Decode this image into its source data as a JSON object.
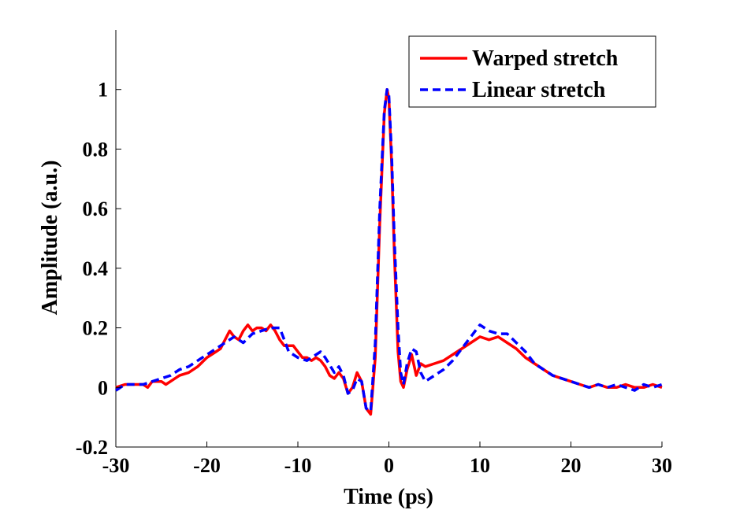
{
  "chart_data": {
    "type": "line",
    "title": "",
    "xlabel": "Time (ps)",
    "ylabel": "Amplitude (a.u.)",
    "xlim": [
      -30,
      30
    ],
    "ylim": [
      -0.2,
      1.2
    ],
    "xticks": [
      -30,
      -20,
      -10,
      0,
      10,
      20,
      30
    ],
    "xtick_labels": [
      "-30",
      "-20",
      "-10",
      "0",
      "10",
      "20",
      "30"
    ],
    "yticks": [
      -0.2,
      0,
      0.2,
      0.4,
      0.6,
      0.8,
      1
    ],
    "ytick_labels": [
      "-0.2",
      "0",
      "0.2",
      "0.4",
      "0.6",
      "0.8",
      "1"
    ],
    "grid": false,
    "legend_position": "top-right",
    "series": [
      {
        "name": "Warped stretch",
        "color": "#ff0000",
        "style": "solid",
        "x": [
          -30,
          -29,
          -28,
          -27,
          -26.5,
          -26,
          -25,
          -24.5,
          -24,
          -23,
          -22,
          -21,
          -20,
          -19,
          -18.5,
          -18,
          -17.5,
          -17,
          -16.5,
          -16,
          -15.5,
          -15,
          -14.5,
          -14,
          -13.5,
          -13,
          -12.5,
          -12,
          -11.5,
          -11,
          -10.5,
          -10,
          -9.5,
          -9,
          -8.5,
          -8,
          -7.5,
          -7,
          -6.5,
          -6,
          -5.5,
          -5,
          -4.5,
          -4,
          -3.5,
          -3,
          -2.5,
          -2,
          -1.5,
          -1,
          -0.5,
          -0.2,
          0,
          0.3,
          0.6,
          1,
          1.3,
          1.6,
          2,
          2.5,
          3,
          3.5,
          4,
          5,
          6,
          7,
          8,
          9,
          10,
          11,
          12,
          13,
          14,
          15,
          16,
          17,
          18,
          19,
          20,
          21,
          22,
          23,
          24,
          25,
          26,
          27,
          28,
          29,
          30
        ],
        "y": [
          0.0,
          0.01,
          0.01,
          0.01,
          0.0,
          0.02,
          0.02,
          0.01,
          0.02,
          0.04,
          0.05,
          0.07,
          0.1,
          0.12,
          0.13,
          0.16,
          0.19,
          0.17,
          0.16,
          0.19,
          0.21,
          0.19,
          0.2,
          0.2,
          0.19,
          0.21,
          0.19,
          0.16,
          0.14,
          0.14,
          0.14,
          0.12,
          0.1,
          0.1,
          0.09,
          0.1,
          0.09,
          0.07,
          0.04,
          0.03,
          0.05,
          0.03,
          -0.02,
          0.0,
          0.05,
          0.02,
          -0.07,
          -0.09,
          0.1,
          0.55,
          0.92,
          1.0,
          0.97,
          0.75,
          0.45,
          0.12,
          0.02,
          0.0,
          0.06,
          0.11,
          0.04,
          0.08,
          0.07,
          0.08,
          0.09,
          0.11,
          0.13,
          0.15,
          0.17,
          0.16,
          0.17,
          0.15,
          0.13,
          0.1,
          0.08,
          0.06,
          0.04,
          0.03,
          0.02,
          0.01,
          0.0,
          0.01,
          0.0,
          0.0,
          0.01,
          0.0,
          0.0,
          0.01,
          0.0
        ]
      },
      {
        "name": "Linear stretch",
        "color": "#0000ff",
        "style": "dashed",
        "x": [
          -30,
          -29,
          -28,
          -27,
          -26,
          -25,
          -24,
          -23,
          -22,
          -21,
          -20,
          -19,
          -18,
          -17,
          -16.5,
          -16,
          -15,
          -14,
          -13,
          -12,
          -11.5,
          -11,
          -10,
          -9,
          -8,
          -7.5,
          -7,
          -6,
          -5.5,
          -5,
          -4.5,
          -4,
          -3.5,
          -3,
          -2.5,
          -2,
          -1.5,
          -1,
          -0.5,
          -0.2,
          0,
          0.3,
          0.6,
          1,
          1.3,
          1.6,
          2,
          2.5,
          3,
          3.5,
          4,
          4.5,
          5,
          6,
          7,
          8,
          9,
          10,
          10.5,
          11,
          12,
          13,
          14,
          15,
          16,
          17,
          18,
          19,
          20,
          21,
          22,
          23,
          24,
          25,
          26,
          27,
          28,
          29,
          30
        ],
        "y": [
          -0.01,
          0.01,
          0.01,
          0.01,
          0.02,
          0.03,
          0.04,
          0.06,
          0.07,
          0.09,
          0.11,
          0.13,
          0.15,
          0.17,
          0.16,
          0.15,
          0.18,
          0.19,
          0.2,
          0.2,
          0.16,
          0.12,
          0.1,
          0.09,
          0.11,
          0.12,
          0.1,
          0.05,
          0.07,
          0.04,
          -0.02,
          -0.01,
          0.03,
          0.02,
          -0.07,
          -0.08,
          0.15,
          0.6,
          0.93,
          1.0,
          0.98,
          0.78,
          0.5,
          0.2,
          0.05,
          0.01,
          0.08,
          0.13,
          0.12,
          0.05,
          0.02,
          0.03,
          0.04,
          0.06,
          0.09,
          0.13,
          0.17,
          0.21,
          0.2,
          0.19,
          0.18,
          0.18,
          0.15,
          0.12,
          0.08,
          0.06,
          0.04,
          0.03,
          0.02,
          0.01,
          0.0,
          0.01,
          0.0,
          0.01,
          0.0,
          -0.01,
          0.01,
          0.0,
          0.01
        ]
      }
    ]
  }
}
